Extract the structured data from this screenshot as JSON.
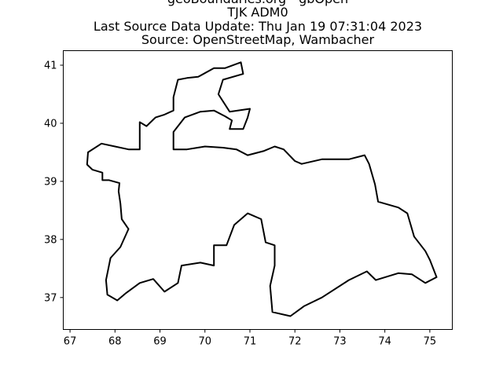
{
  "titles": [
    "geoBoundaries.org - gbOpen",
    "TJK ADM0",
    "Last Source Data Update: Thu Jan 19 07:31:04 2023",
    "Source: OpenStreetMap, Wambacher"
  ],
  "map": {
    "xlim": [
      66.85,
      75.5
    ],
    "ylim": [
      36.45,
      41.25
    ],
    "x_ticks": [
      67,
      68,
      69,
      70,
      71,
      72,
      73,
      74,
      75
    ],
    "y_ticks": [
      37,
      38,
      39,
      40,
      41
    ],
    "boundary_color": "#000000",
    "boundary_lon_lat": [
      [
        67.38,
        39.29
      ],
      [
        67.5,
        39.2
      ],
      [
        67.72,
        39.15
      ],
      [
        67.72,
        39.02
      ],
      [
        67.87,
        39.02
      ],
      [
        68.1,
        38.97
      ],
      [
        68.08,
        38.83
      ],
      [
        68.12,
        38.62
      ],
      [
        68.15,
        38.35
      ],
      [
        68.3,
        38.18
      ],
      [
        68.12,
        37.87
      ],
      [
        67.9,
        37.68
      ],
      [
        67.8,
        37.3
      ],
      [
        67.83,
        37.05
      ],
      [
        68.05,
        36.95
      ],
      [
        68.25,
        37.08
      ],
      [
        68.55,
        37.25
      ],
      [
        68.85,
        37.32
      ],
      [
        69.1,
        37.1
      ],
      [
        69.4,
        37.25
      ],
      [
        69.48,
        37.55
      ],
      [
        69.9,
        37.6
      ],
      [
        70.2,
        37.55
      ],
      [
        70.2,
        37.9
      ],
      [
        70.48,
        37.9
      ],
      [
        70.65,
        38.25
      ],
      [
        70.95,
        38.45
      ],
      [
        71.25,
        38.35
      ],
      [
        71.35,
        37.95
      ],
      [
        71.55,
        37.9
      ],
      [
        71.55,
        37.55
      ],
      [
        71.45,
        37.2
      ],
      [
        71.5,
        36.75
      ],
      [
        71.9,
        36.68
      ],
      [
        72.2,
        36.85
      ],
      [
        72.6,
        37.0
      ],
      [
        73.2,
        37.3
      ],
      [
        73.6,
        37.45
      ],
      [
        73.8,
        37.3
      ],
      [
        74.3,
        37.42
      ],
      [
        74.6,
        37.4
      ],
      [
        74.9,
        37.25
      ],
      [
        75.15,
        37.35
      ],
      [
        75.0,
        37.65
      ],
      [
        74.9,
        37.8
      ],
      [
        74.65,
        38.05
      ],
      [
        74.5,
        38.45
      ],
      [
        74.3,
        38.55
      ],
      [
        73.85,
        38.65
      ],
      [
        73.78,
        38.95
      ],
      [
        73.65,
        39.3
      ],
      [
        73.55,
        39.45
      ],
      [
        73.2,
        39.38
      ],
      [
        72.6,
        39.38
      ],
      [
        72.15,
        39.3
      ],
      [
        72.0,
        39.35
      ],
      [
        71.75,
        39.55
      ],
      [
        71.55,
        39.6
      ],
      [
        71.3,
        39.52
      ],
      [
        70.95,
        39.45
      ],
      [
        70.7,
        39.55
      ],
      [
        70.4,
        39.58
      ],
      [
        70.0,
        39.6
      ],
      [
        69.6,
        39.55
      ],
      [
        69.3,
        39.55
      ],
      [
        69.3,
        39.85
      ],
      [
        69.55,
        40.1
      ],
      [
        69.9,
        40.2
      ],
      [
        70.2,
        40.22
      ],
      [
        70.45,
        40.12
      ],
      [
        70.6,
        40.05
      ],
      [
        70.55,
        39.9
      ],
      [
        70.85,
        39.9
      ],
      [
        70.95,
        40.1
      ],
      [
        71.0,
        40.25
      ],
      [
        70.55,
        40.2
      ],
      [
        70.3,
        40.5
      ],
      [
        70.4,
        40.75
      ],
      [
        70.85,
        40.85
      ],
      [
        70.8,
        41.05
      ],
      [
        70.45,
        40.95
      ],
      [
        70.2,
        40.95
      ],
      [
        69.85,
        40.8
      ],
      [
        69.6,
        40.78
      ],
      [
        69.4,
        40.75
      ],
      [
        69.3,
        40.45
      ],
      [
        69.3,
        40.22
      ],
      [
        69.1,
        40.15
      ],
      [
        68.9,
        40.1
      ],
      [
        68.7,
        39.95
      ],
      [
        68.55,
        40.02
      ],
      [
        68.55,
        39.55
      ],
      [
        68.3,
        39.55
      ],
      [
        68.0,
        39.6
      ],
      [
        67.7,
        39.65
      ],
      [
        67.4,
        39.5
      ],
      [
        67.38,
        39.29
      ]
    ]
  }
}
